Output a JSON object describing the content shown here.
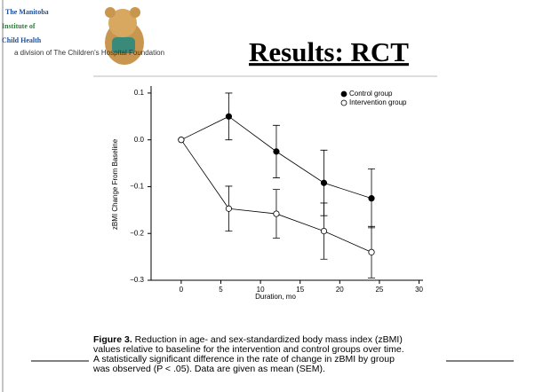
{
  "logo": {
    "lines": [
      "The Manitoba",
      "Institute of",
      "Child Health"
    ],
    "tagline": "a division of The Children's Hospital Foundation"
  },
  "slide_title": "Results: RCT",
  "chart_data": {
    "type": "line",
    "y_label": "zBMI Change From Baseline",
    "x_label": "Duration, mo",
    "xlim": [
      -3.8,
      30.5
    ],
    "xticks": [
      0,
      5,
      10,
      15,
      20,
      25,
      30
    ],
    "ylim": [
      -0.3,
      0.115
    ],
    "yticks": [
      {
        "value": 0.1,
        "label": "0.1"
      },
      {
        "value": 0,
        "label": "0.0"
      },
      {
        "value": -0.1,
        "label": "−0.1"
      },
      {
        "value": -0.2,
        "label": "−0.2"
      },
      {
        "value": -0.3,
        "label": "−0.3"
      }
    ],
    "legend": "upper right",
    "series": [
      {
        "name": "Control group",
        "color": "#000000",
        "marker": "filled",
        "x": [
          0,
          6,
          12,
          18,
          24
        ],
        "values": [
          0,
          0.05,
          -0.025,
          -0.092,
          -0.125
        ],
        "errors": [
          null,
          0.05,
          0.056,
          0.07,
          0.063
        ]
      },
      {
        "name": "Intervention group",
        "color": "#ffffff",
        "marker": "open",
        "x": [
          0,
          6,
          12,
          18,
          24
        ],
        "values": [
          0,
          -0.147,
          -0.158,
          -0.195,
          -0.24
        ],
        "errors": [
          null,
          0.048,
          0.052,
          0.06,
          0.055
        ]
      }
    ]
  },
  "caption": {
    "label": "Figure 3.",
    "lines": [
      " Reduction in age- and sex-standardized body mass index (zBMI)",
      "values relative to baseline for the intervention and control groups over time.",
      "A statistically significant difference in the rate of change in zBMI by group",
      "was observed (P < .05). Data are given as mean (SEM)."
    ]
  }
}
